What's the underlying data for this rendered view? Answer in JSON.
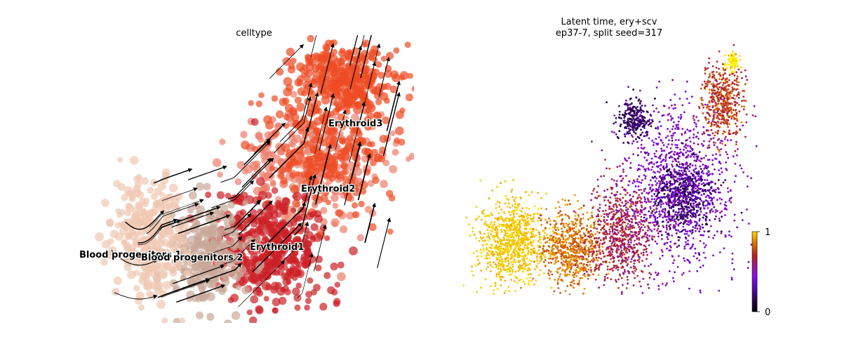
{
  "chart_data": [
    {
      "type": "scatter",
      "title": "celltype",
      "xlabel": "",
      "ylabel": "",
      "grid": false,
      "overlay": "velocity streamlines",
      "categories": [
        "Blood progenitors 1",
        "Blood progenitors 2",
        "Erythroid1",
        "Erythroid2",
        "Erythroid3"
      ],
      "colors": {
        "Blood progenitors 1": "#f0c8b2",
        "Blood progenitors 2": "#c9a898",
        "Erythroid1": "#cc2127",
        "Erythroid2": "#ec7f6c",
        "Erythroid3": "#ee4c24"
      }
    },
    {
      "type": "scatter",
      "title": "Latent time, ery+scv",
      "subtitle": "ep37-7, split seed=317",
      "xlabel": "",
      "ylabel": "",
      "grid": false,
      "colorbar": {
        "colormap": "gnuplot",
        "range": [
          0,
          1
        ],
        "ticks": [
          "0",
          "1"
        ],
        "colors": [
          "#000000",
          "#7a05eb",
          "#b2231f",
          "#f0a800",
          "#ffff00"
        ]
      }
    }
  ]
}
